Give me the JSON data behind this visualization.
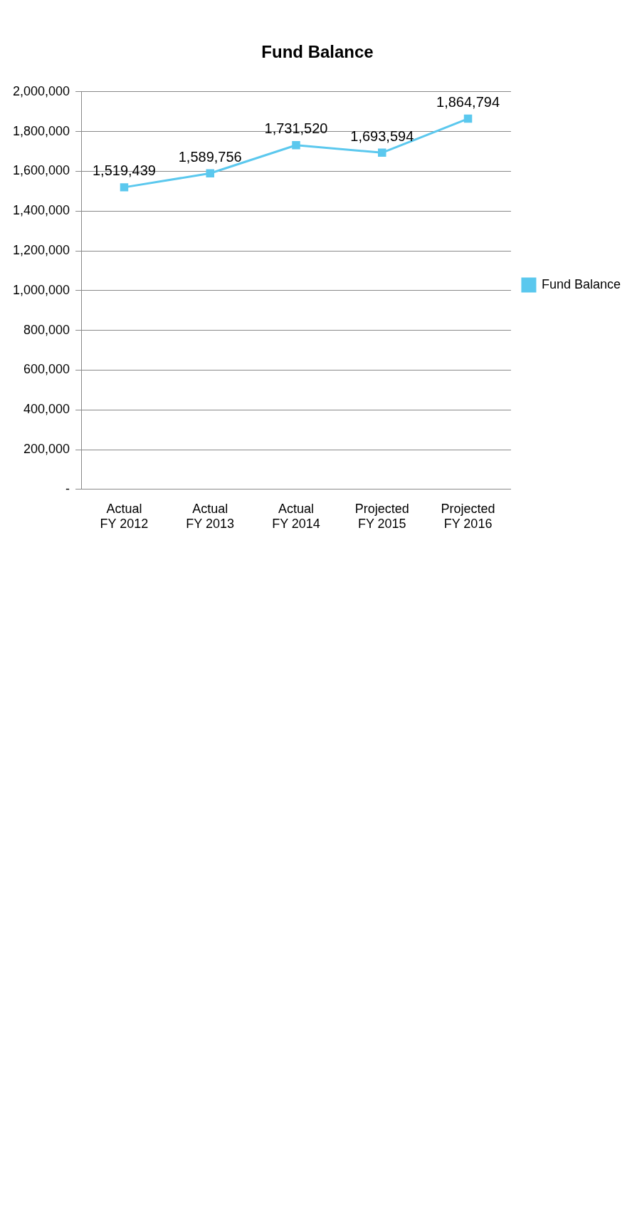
{
  "chart_data": {
    "type": "line",
    "title": "Fund Balance",
    "categories": [
      "Actual\nFY 2012",
      "Actual\nFY 2013",
      "Actual\nFY 2014",
      "Projected\nFY 2015",
      "Projected\nFY 2016"
    ],
    "series": [
      {
        "name": "Fund Balance",
        "color": "#5bc8ee",
        "values": [
          1519439,
          1589756,
          1731520,
          1693594,
          1864794
        ],
        "value_labels": [
          "1,519,439",
          "1,589,756",
          "1,731,520",
          "1,693,594",
          "1,864,794"
        ]
      }
    ],
    "ylim": [
      0,
      2000000
    ],
    "yticks": [
      {
        "value": 0,
        "label": "-"
      },
      {
        "value": 200000,
        "label": "200,000"
      },
      {
        "value": 400000,
        "label": "400,000"
      },
      {
        "value": 600000,
        "label": "600,000"
      },
      {
        "value": 800000,
        "label": "800,000"
      },
      {
        "value": 1000000,
        "label": "1,000,000"
      },
      {
        "value": 1200000,
        "label": "1,200,000"
      },
      {
        "value": 1400000,
        "label": "1,400,000"
      },
      {
        "value": 1600000,
        "label": "1,600,000"
      },
      {
        "value": 1800000,
        "label": "1,800,000"
      },
      {
        "value": 2000000,
        "label": "2,000,000"
      }
    ],
    "grid": "y",
    "legend": "right",
    "marker": "square",
    "line_style": "solid"
  }
}
